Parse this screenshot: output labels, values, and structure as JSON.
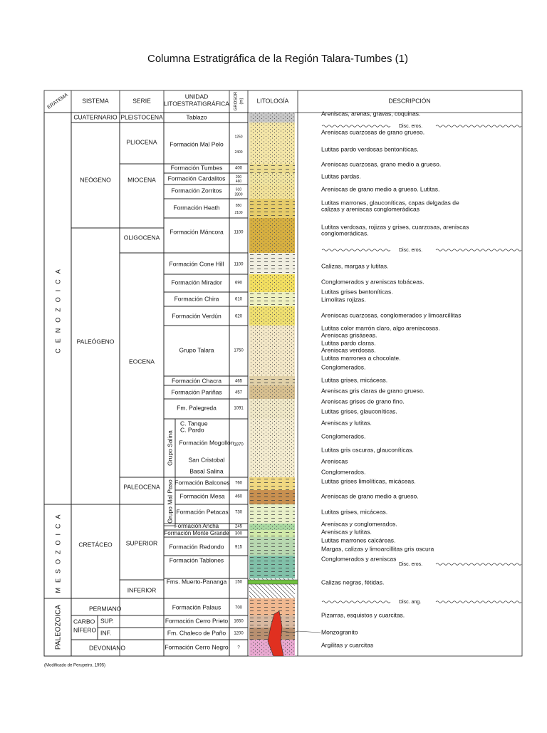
{
  "title": "Columna Estratigráfica de la Región Talara-Tumbes (1)",
  "header": {
    "eratema": "ERATEMA",
    "sistema": "SISTEMA",
    "serie": "SERIE",
    "unidad": [
      "UNIDAD",
      "LITOESTRATIGRÁFICA"
    ],
    "grosor": [
      "GROSOR",
      "(m)"
    ],
    "litologia": "LITOLOGÍA",
    "descripcion": "DESCRIPCIÓN"
  },
  "eratemas": [
    "CENOZOICA",
    "MESOZOICA",
    "PALEOZOICA"
  ],
  "sistemas": [
    "CUATERNARIO",
    "NEÓGENO",
    "PALEÓGENO",
    "CRETÁCEO",
    "PERMIANO",
    [
      "CARBO",
      "NÍFERO"
    ],
    "DEVONIANO"
  ],
  "series": [
    "PLEISTOCENA",
    "PLIOCENA",
    "MIOCENA",
    "OLIGOCENA",
    "EOCENA",
    "PALEOCENA",
    "SUPERIOR",
    "INFERIOR",
    "SUP.",
    "INF."
  ],
  "grupo_mal_paso": "Grupo Mal Paso",
  "units": [
    {
      "name": "Tablazo"
    },
    {
      "name": "Formación  Mal Pelo",
      "thickness": [
        1250,
        2400
      ]
    },
    {
      "name": "Formación Tumbes",
      "thickness": 400
    },
    {
      "name": "Formación Cardalitos",
      "thickness": [
        200,
        460
      ]
    },
    {
      "name": "Formación Zorritos",
      "thickness": [
        610,
        2800
      ]
    },
    {
      "name": "Formación Heath",
      "thickness": [
        850,
        2100
      ]
    },
    {
      "name": "Formación Máncora",
      "thickness": 1100
    },
    {
      "name": "Formación Cone Hill",
      "thickness": 1100
    },
    {
      "name": "Formación Mirador",
      "thickness": 690
    },
    {
      "name": "Formación Chira",
      "thickness": 610
    },
    {
      "name": "Formación Verdún",
      "thickness": 620
    },
    {
      "name": "Grupo Talara",
      "thickness": 1750
    },
    {
      "name": "Formación Chacra",
      "thickness": 465
    },
    {
      "name": "Formación Pariñas",
      "thickness": 457
    },
    {
      "name": "Fm. Palegreda",
      "thickness": 1091
    },
    {
      "name": "Grupo Salina",
      "thickness": 1870,
      "members": [
        "C. Tanque",
        "C. Pardo",
        "Formación Mogollón",
        "San Cristobal",
        "Basal Salina"
      ]
    },
    {
      "name": "Formación Balcones",
      "thickness": 760
    },
    {
      "name": "Formación Mesa",
      "thickness": 460
    },
    {
      "name": "Formación Petacas",
      "thickness": 730
    },
    {
      "name": "Formación Ancha",
      "thickness": 245
    },
    {
      "name": "Formación Monte Grande",
      "thickness": 300
    },
    {
      "name": "Formación Redondo",
      "thickness": 915
    },
    {
      "name": "Formación Tablones"
    },
    {
      "name": "Fms. Muerto-Pananga",
      "thickness": 150
    },
    {
      "name": "Formación Palaus",
      "thickness": 700
    },
    {
      "name": "Formación Cerro Prieto",
      "thickness": 1650
    },
    {
      "name": "Fm. Chaleco de Paño",
      "thickness": 1200
    },
    {
      "name": "Formación Cerro Negro",
      "thickness": "?"
    }
  ],
  "descriptions": [
    "Areniscas, arenas, gravas, coquinas.",
    "Disc. eros.",
    "Areniscas cuarzosas de grano grueso.",
    "Lutitas pardo verdosas bentoníticas.",
    "Areniscas cuarzosas, grano medio a grueso.",
    "Lutitas pardas.",
    "Areniscas de grano medio a grueso. Lutitas.",
    [
      "Lutitas marrones, glauconíticas, capas delgadas de",
      "calizas y areniscas conglomerádicas"
    ],
    [
      "Lutitas verdosas, rojizas y grises, cuarzosas, areniscas",
      "conglomerádicas."
    ],
    "Disc. eros.",
    "Calizas, margas y lutitas.",
    "Conglomerados y areniscas tobáceas.",
    "Lutitas grises bentoníticas.",
    "Limolitas rojizas.",
    "Areniscas cuarzosas, conglomerados y limoarcillitas",
    "Lutitas color marrón claro, algo areniscosas.",
    "Areniscas grisáseas.",
    "Lutitas pardo claras.",
    "Areniscas verdosas.",
    "Lutitas marrones a chocolate.",
    "Conglomerados.",
    "Lutitas grises, micáceas.",
    "Areniscas gris claras de grano grueso.",
    "Areniscas grises de grano fino.",
    "Lutitas grises, glauconíticas.",
    "Areniscas y lutitas.",
    "Conglomerados.",
    "Lutitas gris oscuras, glauconíticas.",
    "Areniscas",
    "Conglomerados.",
    "Lutitas grises limolíticas, micáceas.",
    "Areniscas de grano medio a grueso.",
    "Lutitas grises, micáceas.",
    "Areniscas y conglomerados.",
    "Areniscas y lutitas.",
    "Lutitas marrones calcáreas.",
    "Margas, calizas y limoarcillitas gris oscura",
    "Conglomerados y areniscas",
    "Disc. eros.",
    "Calizas negras, fétidas.",
    "Disc. ang.",
    "Pizarras, esquistos y cuarcitas.",
    "Monzogranito",
    "Argilitas y cuarcitas"
  ],
  "footnote": "(Modificado de Perupetro, 1995)"
}
